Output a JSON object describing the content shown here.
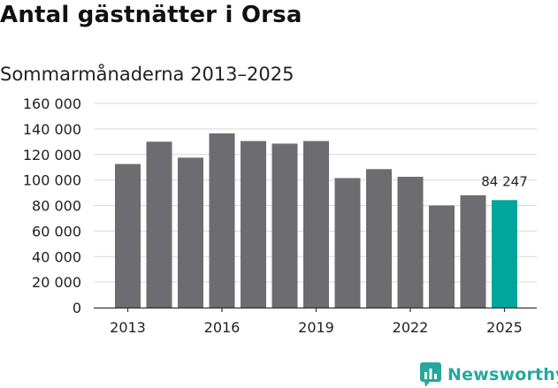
{
  "title": "Antal gästnätter i Orsa",
  "subtitle": "Sommarmånaderna 2013–2025",
  "brand": {
    "name": "Newsworthy",
    "icon": "newsworthy-logo-icon",
    "color": "#26a89a"
  },
  "chart_data": {
    "type": "bar",
    "categories": [
      "2013",
      "2014",
      "2015",
      "2016",
      "2017",
      "2018",
      "2019",
      "2020",
      "2021",
      "2022",
      "2023",
      "2024",
      "2025"
    ],
    "values": [
      112500,
      130000,
      117500,
      136500,
      130500,
      128500,
      130500,
      101500,
      108500,
      102500,
      80000,
      88000,
      84247
    ],
    "x_tick_labels": [
      "2013",
      "2016",
      "2019",
      "2022",
      "2025"
    ],
    "y_tick_labels": [
      "0",
      "20 000",
      "40 000",
      "60 000",
      "80 000",
      "100 000",
      "120 000",
      "140 000",
      "160 000"
    ],
    "ylim": [
      0,
      160000
    ],
    "ytick_step": 20000,
    "grid": true,
    "bar_color": "#6d6c71",
    "highlight_color": "#00a59b",
    "highlight_index": 12,
    "annotation": {
      "index": 12,
      "text": "84 247"
    },
    "xlabel": "",
    "ylabel": ""
  }
}
